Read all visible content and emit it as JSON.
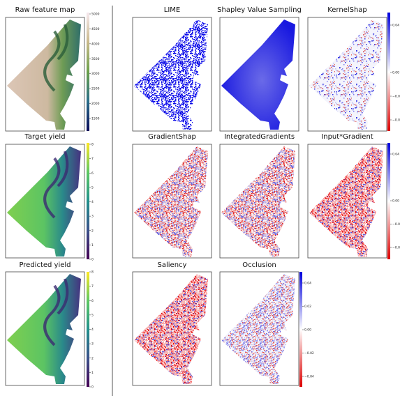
{
  "panels": [
    {
      "title": "Raw feature map"
    },
    {
      "title": "Target yield"
    },
    {
      "title": "Predicted yield"
    },
    {
      "title": "LIME"
    },
    {
      "title": "Shapley Value Sampling"
    },
    {
      "title": "KernelShap"
    },
    {
      "title": "GradientShap"
    },
    {
      "title": "IntegratedGradients"
    },
    {
      "title": "Input*Gradient"
    },
    {
      "title": "Saliency"
    },
    {
      "title": "Occlusion"
    }
  ],
  "colorbars": [
    {
      "ticks": [
        "5000",
        "4500",
        "4000",
        "3500",
        "3000",
        "2500",
        "2000",
        "1500"
      ]
    },
    {
      "ticks": [
        "8",
        "7",
        "6",
        "5",
        "4",
        "3",
        "2",
        "1",
        "0"
      ]
    },
    {
      "ticks": [
        "8",
        "7",
        "6",
        "5",
        "4",
        "3",
        "2",
        "1",
        "0"
      ]
    },
    {
      "ticks": [
        "0.04",
        "0.00",
        "−0.0",
        "−0.0"
      ]
    },
    {
      "ticks": [
        "0.04",
        "0.00",
        "−0.0",
        "−0.0"
      ]
    },
    {
      "ticks": [
        "0.04",
        "0.02",
        "0.00",
        "−0.02",
        "−0.04"
      ]
    }
  ]
}
